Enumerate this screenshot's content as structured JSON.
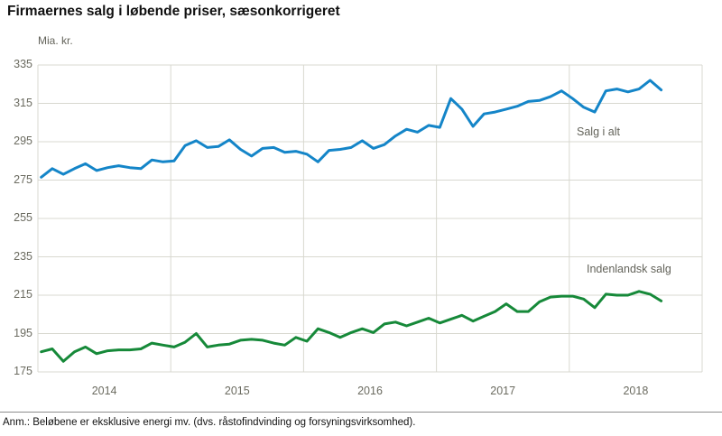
{
  "title": "Firmaernes salg i løbende priser, sæsonkorrigeret",
  "y_unit": "Mia. kr.",
  "note": "Anm.: Beløbene er eksklusive energi mv. (dvs. råstofindvinding og forsyningsvirksomhed).",
  "colors": {
    "total_line": "#1485c8",
    "domestic_line": "#168939",
    "grid": "#d8d8d0",
    "axis_text": "#6b6b60",
    "footer_rule": "#8c8c8c"
  },
  "chart_data": {
    "type": "line",
    "title": "Firmaernes salg i løbende priser, sæsonkorrigeret",
    "ylabel": "Mia. kr.",
    "xlabel": "",
    "ylim": [
      175,
      335
    ],
    "y_ticks": [
      175,
      195,
      215,
      235,
      255,
      275,
      295,
      315,
      335
    ],
    "x_tick_labels": [
      "2014",
      "2015",
      "2016",
      "2017",
      "2018"
    ],
    "x_domain_months": 60,
    "x_first_month": "2014-01",
    "x_last_month": "2018-09",
    "grid": "horizontal gridlines at every y tick, vertical gridlines at year boundaries, light gray frame",
    "legend_position": "inline labels next to lines",
    "series": [
      {
        "name": "Salg i alt",
        "color": "#1485c8",
        "values": [
          276.5,
          281,
          278,
          281,
          283.5,
          280,
          281.5,
          282.5,
          281.5,
          281,
          285.5,
          284.5,
          285,
          293,
          295.5,
          292,
          292.5,
          296,
          291,
          287.5,
          291.5,
          292,
          289.5,
          290,
          288.5,
          284.5,
          290.5,
          291,
          292,
          295.5,
          291.5,
          293.5,
          298,
          301.5,
          300,
          303.5,
          302.5,
          317.5,
          312,
          303,
          309.5,
          310.5,
          312,
          313.5,
          316,
          316.5,
          318.5,
          321.5,
          317.5,
          313,
          310.5,
          321.5,
          322.5,
          321,
          322.5,
          327,
          322
        ]
      },
      {
        "name": "Indenlandsk salg",
        "color": "#168939",
        "values": [
          185.5,
          187,
          180.5,
          185.5,
          188,
          184.5,
          186,
          186.5,
          186.5,
          187,
          190,
          189,
          188,
          190.5,
          195,
          188,
          189,
          189.5,
          191.5,
          192,
          191.5,
          190,
          189,
          193,
          191,
          197.5,
          195.5,
          193,
          195.5,
          197.5,
          195.5,
          200,
          201,
          199,
          201,
          203,
          200.5,
          202.5,
          204.5,
          201.5,
          204,
          206.5,
          210.5,
          206.5,
          206.5,
          211.5,
          214,
          214.5,
          214.5,
          213,
          208.5,
          215.5,
          215,
          215,
          217,
          215.5,
          212
        ]
      }
    ]
  }
}
